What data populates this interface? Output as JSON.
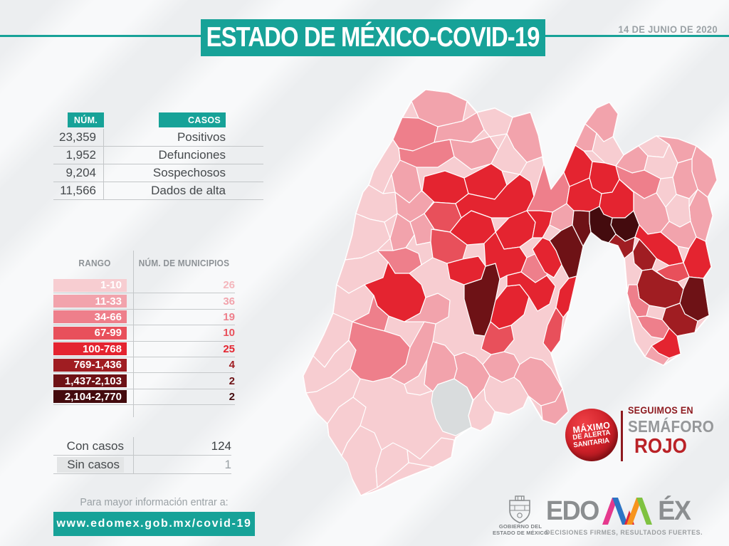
{
  "header": {
    "title": "ESTADO DE MÉXICO-COVID-19",
    "date": "14 DE JUNIO DE 2020"
  },
  "stats": {
    "col_num": "NÚM.",
    "col_cases": "CASOS",
    "rows": [
      {
        "num": "23,359",
        "label": "Positivos"
      },
      {
        "num": "1,952",
        "label": "Defunciones"
      },
      {
        "num": "9,204",
        "label": "Sospechosos"
      },
      {
        "num": "11,566",
        "label": "Dados de alta"
      }
    ]
  },
  "legend": {
    "col_range": "RANGO",
    "col_mun": "NÚM. DE MUNICIPIOS",
    "rows": [
      {
        "range": "1-10",
        "count": "26",
        "color": "L"
      },
      {
        "range": "11-33",
        "count": "36",
        "color": "P"
      },
      {
        "range": "34-66",
        "count": "19",
        "color": "M"
      },
      {
        "range": "67-99",
        "count": "10",
        "color": "R2"
      },
      {
        "range": "100-768",
        "count": "25",
        "color": "R"
      },
      {
        "range": "769-1,436",
        "count": "4",
        "color": "D"
      },
      {
        "range": "1,437-2,103",
        "count": "2",
        "color": "K"
      },
      {
        "range": "2,104-2,770",
        "count": "2",
        "color": "B"
      }
    ]
  },
  "totals": {
    "with_label": "Con casos",
    "with_value": "124",
    "without_label": "Sin casos",
    "without_value": "1"
  },
  "footer": {
    "info": "Para mayor información entrar a:",
    "url": "www.edomex.gob.mx/covid-19"
  },
  "alert": {
    "badge1": "MÁXIMO",
    "badge2": "DE ALERTA",
    "badge3": "SANITARIA",
    "line1": "SEGUIMOS EN",
    "line2": "SEMÁFORO",
    "line3": "ROJO"
  },
  "brand": {
    "gov_line1": "GOBIERNO DEL",
    "gov_line2": "ESTADO DE MÉXICO",
    "logo_left": "EDO",
    "logo_right": "ÉX",
    "tagline": "DECISIONES FIRMES, RESULTADOS FUERTES."
  },
  "colors": {
    "teal": "#17a298",
    "L": "#f7cdd1",
    "P": "#f2a3ac",
    "M": "#ee7f8b",
    "R2": "#e8505b",
    "R": "#e42430",
    "D": "#a01d22",
    "K": "#6e1216",
    "B": "#440b0e",
    "G": "#d9dcdd",
    "count_light": "#f4b6bc"
  },
  "chart_data": {
    "type": "choropleth",
    "title": "ESTADO DE MÉXICO-COVID-19",
    "date": "14 DE JUNIO DE 2020",
    "cases": {
      "Positivos": 23359,
      "Defunciones": 1952,
      "Sospechosos": 9204,
      "Dados de alta": 11566
    },
    "legend_ranges": [
      {
        "range": "1-10",
        "municipios": 26
      },
      {
        "range": "11-33",
        "municipios": 36
      },
      {
        "range": "34-66",
        "municipios": 19
      },
      {
        "range": "67-99",
        "municipios": 10
      },
      {
        "range": "100-768",
        "municipios": 25
      },
      {
        "range": "769-1,436",
        "municipios": 4
      },
      {
        "range": "1,437-2,103",
        "municipios": 2
      },
      {
        "range": "2,104-2,770",
        "municipios": 2
      }
    ],
    "municipios_con_casos": 124,
    "municipios_sin_casos": 1,
    "status": "Semáforo rojo - Máximo de alerta sanitaria"
  },
  "map": {
    "silhouette": "178,42 198,26 230,30 256,42 270,58 295,52 320,65 345,58 356,90 364,130 374,166 392,142 408,104 422,74 438,52 456,44 468,60 461,92 476,118 497,105 522,91 552,95 578,105 600,123 607,153 594,177 601,203 591,239 599,275 588,291 596,343 576,367 551,372 556,397 532,413 506,401 492,380 485,345 481,310 477,263 468,245 455,241 445,238 430,226 419,246 410,288 399,336 387,378 374,396 390,446 398,478 380,496 362,490 342,456 335,472 315,482 295,478 290,495 275,505 262,500 240,515 234,542 208,556 185,565 160,575 140,585 122,592 107,596 96,575 88,550 80,540 62,512 60,495 45,480 30,452 26,428 40,400 55,370 68,340 73,300 85,265 95,230 100,200 110,170 118,160 125,140 140,115 152,96 165,65",
    "cells": [
      {
        "c": "P",
        "p": "178,42 198,26 230,30 256,42 250,70 215,78 188,66"
      },
      {
        "c": "M",
        "p": "152,96 165,65 188,66 215,78 210,100 180,112 160,108"
      },
      {
        "c": "P",
        "p": "215,78 250,70 270,58 280,82 262,100 232,96 210,100"
      },
      {
        "c": "L",
        "p": "270,58 295,52 320,65 312,88 288,92 280,82"
      },
      {
        "c": "P",
        "p": "320,65 345,58 356,90 362,120 340,128 322,108 312,88"
      },
      {
        "c": "M",
        "p": "160,108 180,112 210,100 232,96 238,120 215,135 185,135 162,125"
      },
      {
        "c": "P",
        "p": "232,96 262,100 288,92 300,110 290,130 262,138 238,120"
      },
      {
        "c": "L",
        "p": "300,110 312,88 322,108 340,128 330,145 305,140 290,130"
      },
      {
        "c": "L",
        "p": "118,160 125,140 140,115 152,96 160,108 162,125 150,145 138,172"
      },
      {
        "c": "P",
        "p": "150,145 162,125 185,135 192,168 175,185 155,170"
      },
      {
        "c": "L",
        "p": "100,200 110,170 118,160 138,172 155,170 158,200 140,212 120,208"
      },
      {
        "c": "L",
        "p": "85,265 95,230 100,200 120,208 140,212 148,235 130,252 108,262"
      },
      {
        "c": "L",
        "p": "73,300 85,265 108,262 130,252 145,268 138,290 112,300 90,312"
      },
      {
        "c": "L",
        "p": "68,340 73,300 90,312 112,300 125,315 118,340 95,352"
      },
      {
        "c": "L",
        "p": "40,400 55,370 68,340 95,352 90,378 70,396 56,416"
      },
      {
        "c": "L",
        "p": "26,428 40,400 56,416 70,396 90,378 100,392 92,418 70,436 45,450 30,452"
      },
      {
        "c": "L",
        "p": "45,480 30,452 45,450 70,436 92,418 106,432 96,458 76,472 60,495"
      },
      {
        "c": "L",
        "p": "80,540 62,512 60,495 76,472 96,458 114,472 106,498 88,522"
      },
      {
        "c": "L",
        "p": "107,596 96,575 80,540 88,522 106,498 126,508 136,532 128,558 130,585"
      },
      {
        "c": "L",
        "p": "160,562 130,585 128,558 136,532 152,522 172,532 174,550"
      },
      {
        "c": "L",
        "p": "190,545 220,515 238,518 234,542 208,556 174,550 172,532"
      },
      {
        "c": "P",
        "p": "155,170 175,185 192,168 210,182 196,200 176,212 158,200"
      },
      {
        "c": "P",
        "p": "148,235 158,200 176,212 182,230 170,248 152,252"
      },
      {
        "c": "M",
        "p": "145,268 130,252 152,252 170,248 188,256 192,272 175,284 155,284"
      },
      {
        "c": "R",
        "p": "125,315 112,300 138,290 145,268 155,284 175,284 192,300 198,318 190,340 168,352 146,344 130,330"
      },
      {
        "c": "M",
        "p": "95,352 118,340 125,315 130,330 146,344 140,365 120,360"
      },
      {
        "c": "M",
        "p": "100,392 90,378 95,352 120,360 140,365 162,372 176,388 170,412 148,430 124,436 106,432 92,418"
      },
      {
        "c": "P",
        "p": "176,212 196,200 210,222 205,240 185,244 182,230"
      },
      {
        "c": "L",
        "p": "170,248 182,230 185,244 205,240 208,262 192,272 188,256"
      },
      {
        "c": "P",
        "p": "190,340 198,318 215,312 232,322 230,345 212,355 196,352 168,352"
      },
      {
        "c": "P",
        "p": "148,430 170,412 176,388 196,352 212,355 208,380 200,405 188,428 168,440"
      },
      {
        "c": "L",
        "p": "168,440 188,428 200,405 215,408 222,428 210,448 190,455 172,452"
      },
      {
        "c": "G",
        "p": "215,440 238,432 256,444 264,462 258,484 262,500 240,512 222,506 212,488 206,464 208,450"
      },
      {
        "c": "P",
        "p": "238,432 215,440 208,450 196,440 200,405 208,380 225,385 238,400 242,418"
      },
      {
        "c": "P",
        "p": "256,444 238,432 242,418 238,400 252,395 268,402 278,412 288,428 280,446 265,462"
      },
      {
        "c": "P",
        "p": "288,428 278,412 290,398 308,394 322,398 330,412 322,430 305,437"
      },
      {
        "c": "P",
        "p": "330,412 345,402 362,406 374,418 390,446 380,464 360,470 342,456 330,436 322,430"
      },
      {
        "c": "P",
        "p": "390,446 398,478 380,496 362,490 360,470 380,464"
      },
      {
        "c": "L",
        "p": "280,446 288,428 305,437 322,430 330,436 342,456 335,472 315,482 295,478 282,462"
      },
      {
        "c": "L",
        "p": "258,484 265,462 280,446 282,462 295,478 290,495 275,505 262,500"
      },
      {
        "c": "R",
        "p": "196,148 225,140 252,150 258,172 240,186 210,184 193,168"
      },
      {
        "c": "R",
        "p": "252,150 290,130 305,140 312,160 295,180 258,172"
      },
      {
        "c": "R2",
        "p": "210,184 240,186 248,206 232,226 210,222 196,200"
      },
      {
        "c": "R",
        "p": "258,172 295,180 312,160 330,145 345,155 350,176 340,196 315,206 290,206 262,196 248,206 240,186"
      },
      {
        "c": "R",
        "p": "232,226 248,206 262,196 290,206 296,226 280,242 256,244"
      },
      {
        "c": "R2",
        "p": "206,222 232,226 256,244 250,264 228,270 208,262 205,240"
      },
      {
        "c": "R",
        "p": "228,270 250,264 272,260 282,274 276,292 252,300 232,292"
      },
      {
        "c": "K",
        "p": "252,300 276,292 282,274 296,270 302,292 296,322 289,352 281,372 266,370 258,342 252,320"
      },
      {
        "c": "R",
        "p": "296,226 315,206 340,196 352,212 348,234 330,247 308,250"
      },
      {
        "c": "R",
        "p": "280,242 296,226 308,250 330,247 340,262 332,282 312,287 302,292 296,270 282,274"
      },
      {
        "c": "R",
        "p": "289,352 296,322 312,302 330,300 343,317 336,342 318,357 301,362"
      },
      {
        "c": "R2",
        "p": "281,372 289,352 301,362 318,357 322,377 308,394 290,398 276,390"
      },
      {
        "c": "M",
        "p": "340,262 358,254 372,264 368,287 352,297 332,282"
      },
      {
        "c": "R",
        "p": "332,282 352,297 368,287 380,302 372,327 355,337 343,317 330,300 312,302 312,287"
      },
      {
        "c": "M",
        "p": "350,176 364,130 374,166 392,142 400,162 396,186 376,198 358,196 340,196"
      },
      {
        "c": "P",
        "p": "376,198 396,186 406,196 404,216 388,224 372,216"
      },
      {
        "c": "R",
        "p": "340,196 358,196 376,198 372,216 362,234 348,234 352,212"
      },
      {
        "c": "K",
        "p": "388,224 404,216 419,246 410,288 399,291 389,272 381,252 372,238"
      },
      {
        "c": "R",
        "p": "362,234 372,238 381,252 389,272 378,290 365,282 355,264 348,250"
      },
      {
        "c": "R",
        "p": "399,291 410,288 399,336 391,346 381,332 386,307"
      },
      {
        "c": "R2",
        "p": "381,332 391,346 387,378 374,396 363,382 369,357"
      },
      {
        "c": "R",
        "p": "392,142 408,104 420,112 432,127 428,150 412,157 400,162"
      },
      {
        "c": "P",
        "p": "408,104 422,74 438,87 432,112 420,112"
      },
      {
        "c": "P",
        "p": "422,74 438,52 456,44 468,60 461,92 448,99 438,87"
      },
      {
        "c": "L",
        "p": "438,87 448,99 461,92 476,118 465,133 450,129 432,112"
      },
      {
        "c": "R",
        "p": "428,150 432,127 450,129 465,133 470,152 460,170 445,172 432,164"
      },
      {
        "c": "R",
        "p": "400,162 412,157 428,150 432,164 445,172 442,190 428,197 415,196 406,196 396,186"
      },
      {
        "c": "K",
        "p": "404,216 406,196 415,196 428,197 428,212 430,226 419,246"
      },
      {
        "c": "R",
        "p": "445,172 460,170 470,152 490,170 490,196 478,206 460,206 448,201 442,190"
      },
      {
        "c": "B",
        "p": "460,206 478,206 490,196 498,216 492,233 478,239 465,229 458,216"
      },
      {
        "c": "B",
        "p": "448,201 460,206 458,216 465,229 455,241 445,238 430,226 428,212 428,197 442,190"
      },
      {
        "c": "D",
        "p": "465,229 478,239 492,233 489,253 477,263 468,245 455,241"
      },
      {
        "c": "P",
        "p": "476,118 497,105 510,119 505,139 488,143 465,133"
      },
      {
        "c": "L",
        "p": "497,105 522,91 540,103 532,121 510,119"
      },
      {
        "c": "P",
        "p": "522,91 552,95 578,105 572,123 552,129 540,103"
      },
      {
        "c": "P",
        "p": "578,105 600,123 607,153 594,177 580,166 572,141 572,123"
      },
      {
        "c": "L",
        "p": "532,121 540,103 552,129 545,149 528,151 505,139 510,119"
      },
      {
        "c": "P",
        "p": "545,149 552,129 572,123 572,141 580,166 568,179 550,173"
      },
      {
        "c": "M",
        "p": "488,143 505,139 528,151 522,171 505,179 490,169 470,152 465,133"
      },
      {
        "c": "P",
        "p": "594,177 601,203 591,239 578,233 570,211 568,191 580,166"
      },
      {
        "c": "L",
        "p": "550,173 568,179 568,191 570,211 555,219 540,211 535,191"
      },
      {
        "c": "P",
        "p": "505,179 522,171 535,191 540,211 528,226 510,229 498,216 490,196 490,169"
      },
      {
        "c": "P",
        "p": "555,219 570,211 578,233 568,249 552,246 540,236 528,226 540,211"
      },
      {
        "c": "R",
        "p": "528,226 540,236 552,246 560,269 540,273 522,263 510,249 498,236 492,233 498,216 510,229"
      },
      {
        "c": "R",
        "p": "568,249 578,233 591,239 599,275 588,291 568,289 560,269"
      },
      {
        "c": "R2",
        "p": "560,269 568,289 552,296 535,291 522,281 540,273"
      },
      {
        "c": "D",
        "p": "489,253 498,236 510,249 522,263 516,278 502,280 491,270"
      },
      {
        "c": "D",
        "p": "495,300 502,280 516,278 535,291 552,296 560,306 555,326 535,333 512,329 498,319"
      },
      {
        "c": "K",
        "p": "560,306 568,289 588,291 596,343 580,351 562,341 555,326"
      },
      {
        "c": "D",
        "p": "535,333 555,326 562,341 580,351 576,367 551,372 540,361 530,349"
      },
      {
        "c": "M",
        "p": "483,300 495,300 498,319 512,329 508,344 495,345 486,330 481,312"
      },
      {
        "c": "M",
        "p": "495,345 508,344 530,349 540,361 532,376 515,373 502,359"
      },
      {
        "c": "R",
        "p": "532,376 540,361 551,372 556,397 540,403 525,396 515,386"
      },
      {
        "c": "P",
        "p": "506,401 515,386 525,396 540,403 532,413"
      }
    ]
  }
}
